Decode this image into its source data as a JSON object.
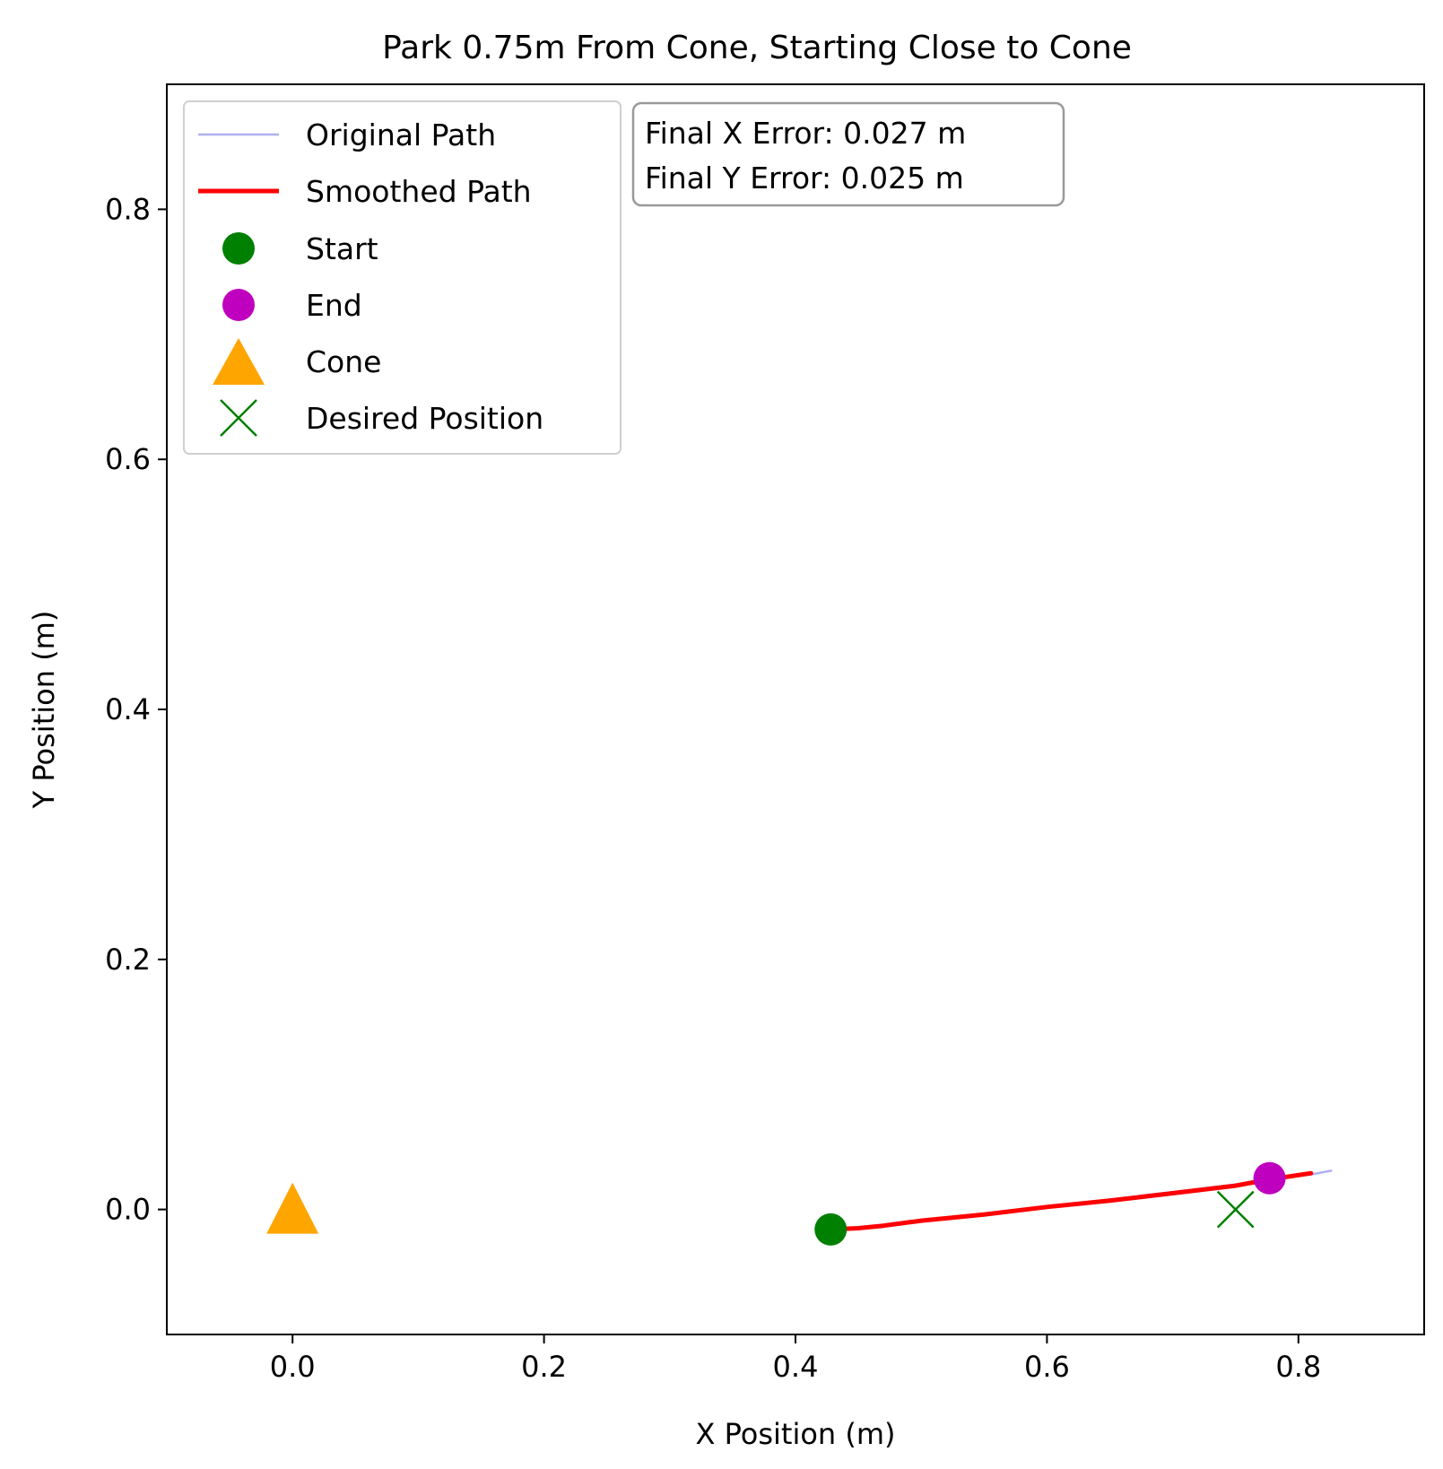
{
  "chart_data": {
    "type": "line",
    "title": "Park 0.75m From Cone, Starting Close to Cone",
    "xlabel": "X Position (m)",
    "ylabel": "Y Position (m)",
    "xlim": [
      -0.1,
      0.9
    ],
    "ylim": [
      -0.1,
      0.9
    ],
    "xticks": [
      0.0,
      0.2,
      0.4,
      0.6,
      0.8
    ],
    "yticks": [
      0.0,
      0.2,
      0.4,
      0.6,
      0.8
    ],
    "xtick_labels": [
      "0.0",
      "0.2",
      "0.4",
      "0.6",
      "0.8"
    ],
    "ytick_labels": [
      "0.0",
      "0.2",
      "0.4",
      "0.6",
      "0.8"
    ],
    "grid": false,
    "legend_position": "top-left",
    "series": [
      {
        "name": "Original Path",
        "kind": "line",
        "color": "#b0b0f0",
        "points": [
          [
            0.428,
            -0.016
          ],
          [
            0.47,
            -0.013
          ],
          [
            0.5,
            -0.009
          ],
          [
            0.55,
            -0.004
          ],
          [
            0.6,
            0.002
          ],
          [
            0.65,
            0.008
          ],
          [
            0.7,
            0.014
          ],
          [
            0.75,
            0.02
          ],
          [
            0.78,
            0.025
          ],
          [
            0.81,
            0.028
          ],
          [
            0.826,
            0.031
          ]
        ]
      },
      {
        "name": "Smoothed Path",
        "kind": "line",
        "color": "#ff0000",
        "points": [
          [
            0.428,
            -0.016
          ],
          [
            0.45,
            -0.015
          ],
          [
            0.47,
            -0.013
          ],
          [
            0.5,
            -0.009
          ],
          [
            0.55,
            -0.004
          ],
          [
            0.6,
            0.002
          ],
          [
            0.65,
            0.007
          ],
          [
            0.7,
            0.013
          ],
          [
            0.75,
            0.019
          ],
          [
            0.777,
            0.024
          ],
          [
            0.81,
            0.029
          ]
        ]
      },
      {
        "name": "Start",
        "kind": "marker",
        "marker": "circle",
        "color": "#008000",
        "x": 0.428,
        "y": -0.016
      },
      {
        "name": "End",
        "kind": "marker",
        "marker": "circle",
        "color": "#bf00bf",
        "x": 0.777,
        "y": 0.025
      },
      {
        "name": "Cone",
        "kind": "marker",
        "marker": "triangle",
        "color": "#ffa500",
        "x": 0.0,
        "y": 0.0
      },
      {
        "name": "Desired Position",
        "kind": "marker",
        "marker": "x",
        "color": "#008000",
        "x": 0.75,
        "y": 0.0
      }
    ],
    "annotation": {
      "lines": [
        "Final X Error: 0.027 m",
        "Final Y Error: 0.025 m"
      ]
    }
  }
}
